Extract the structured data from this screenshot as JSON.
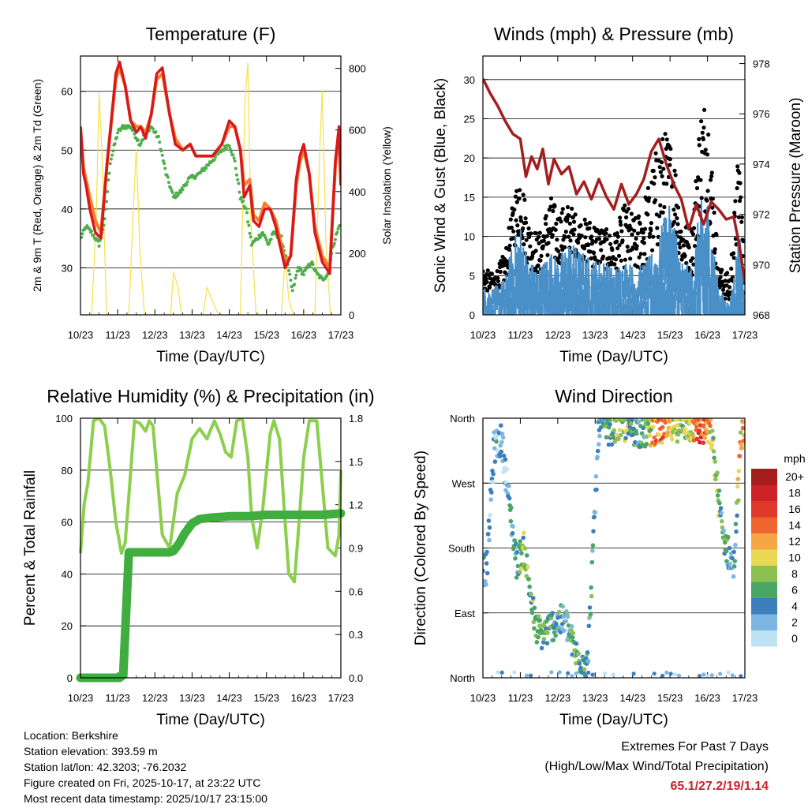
{
  "chart_data": [
    {
      "type": "line",
      "title": "Temperature (F)",
      "xlabel": "Time (Day/UTC)",
      "ylabel": "2m & 9m T (Red, Orange) & 2m Td (Green)",
      "ylabel_right": "Solar Insolation (Yellow)",
      "x_ticks": [
        "10/23",
        "11/23",
        "12/23",
        "13/23",
        "14/23",
        "15/23",
        "16/23",
        "17/23"
      ],
      "y_ticks": [
        "30",
        "40",
        "50",
        "60"
      ],
      "y_right_ticks": [
        "0",
        "200",
        "400",
        "600",
        "800"
      ],
      "ylim": [
        22,
        66
      ],
      "ylim_right": [
        0,
        840
      ],
      "grid": true,
      "series": [
        {
          "name": "2m T",
          "color": "#d7191c",
          "x": [
            0,
            0.08,
            0.15,
            0.25,
            0.4,
            0.55,
            0.72,
            0.95,
            1.05,
            1.2,
            1.35,
            1.5,
            1.62,
            1.75,
            1.9,
            2.05,
            2.2,
            2.4,
            2.55,
            2.75,
            2.95,
            3.1,
            3.3,
            3.55,
            3.8,
            4.0,
            4.15,
            4.3,
            4.4,
            4.55,
            4.65,
            4.8,
            4.95,
            5.1,
            5.25,
            5.5,
            5.65,
            5.8,
            5.9,
            6.0,
            6.15,
            6.3,
            6.5,
            6.7,
            6.85,
            6.95,
            7.0
          ],
          "y": [
            54,
            46,
            44,
            40,
            36,
            35,
            48,
            63,
            65,
            61,
            55,
            53,
            54,
            52,
            56,
            63,
            64,
            56,
            51,
            50,
            51,
            49,
            49,
            49,
            51,
            55,
            54,
            50,
            42,
            44,
            38,
            37,
            40,
            40,
            37,
            30,
            32,
            45,
            49,
            51,
            46,
            36,
            31,
            29,
            48,
            54,
            44
          ]
        },
        {
          "name": "9m T",
          "color": "#f57f2b",
          "x": [
            0,
            0.08,
            0.15,
            0.25,
            0.4,
            0.55,
            0.72,
            0.95,
            1.05,
            1.2,
            1.35,
            1.5,
            1.62,
            1.75,
            1.9,
            2.05,
            2.2,
            2.4,
            2.55,
            2.75,
            2.95,
            3.1,
            3.3,
            3.55,
            3.8,
            4.0,
            4.15,
            4.3,
            4.4,
            4.55,
            4.65,
            4.8,
            4.95,
            5.1,
            5.25,
            5.5,
            5.65,
            5.8,
            5.9,
            6.0,
            6.15,
            6.3,
            6.5,
            6.7,
            6.85,
            6.95,
            7.0
          ],
          "y": [
            54,
            47,
            45,
            42,
            38,
            36,
            48,
            62,
            64,
            61,
            55,
            54,
            54,
            53,
            56,
            62,
            63,
            56,
            52,
            50,
            51,
            49,
            49,
            49,
            51,
            54,
            54,
            50,
            44,
            45,
            39,
            38,
            41,
            40,
            38,
            31,
            32,
            44,
            48,
            50,
            46,
            37,
            32,
            30,
            47,
            53,
            44
          ]
        },
        {
          "name": "2m Td",
          "color": "#4daf4a",
          "x": [
            0,
            0.15,
            0.3,
            0.5,
            0.65,
            0.8,
            1.0,
            1.15,
            1.35,
            1.6,
            1.75,
            1.9,
            2.1,
            2.3,
            2.5,
            2.7,
            2.9,
            3.2,
            3.5,
            3.8,
            4.0,
            4.15,
            4.3,
            4.45,
            4.6,
            4.75,
            4.9,
            5.05,
            5.2,
            5.4,
            5.55,
            5.7,
            5.85,
            6.0,
            6.2,
            6.35,
            6.5,
            6.65,
            6.8,
            6.95,
            7.0
          ],
          "y": [
            35,
            37,
            36,
            34,
            38,
            48,
            53,
            54,
            54,
            51,
            53,
            54,
            52,
            46,
            42,
            43,
            45,
            46,
            48,
            50,
            51,
            48,
            42,
            40,
            34,
            35,
            36,
            34,
            36,
            35,
            31,
            26,
            30,
            29,
            31,
            29,
            28,
            29,
            34,
            37,
            38
          ]
        },
        {
          "name": "Solar Insolation",
          "color": "#f5e14a",
          "axis": "right",
          "x": [
            0,
            0.3,
            0.42,
            0.5,
            0.58,
            0.7,
            1.1,
            1.3,
            1.42,
            1.5,
            1.6,
            1.72,
            2.1,
            2.3,
            2.42,
            2.5,
            2.62,
            2.72,
            3.1,
            3.3,
            3.4,
            3.5,
            3.6,
            3.72,
            4.1,
            4.3,
            4.42,
            4.5,
            4.58,
            4.72,
            5.1,
            5.3,
            5.4,
            5.5,
            5.6,
            5.72,
            6.1,
            6.3,
            6.42,
            6.5,
            6.6,
            6.72,
            7.0
          ],
          "y": [
            0,
            0,
            300,
            720,
            520,
            0,
            0,
            0,
            340,
            540,
            200,
            0,
            0,
            0,
            0,
            140,
            90,
            0,
            0,
            0,
            90,
            60,
            30,
            0,
            0,
            0,
            690,
            820,
            300,
            0,
            0,
            0,
            0,
            190,
            50,
            0,
            0,
            0,
            500,
            730,
            230,
            0,
            0
          ]
        }
      ]
    },
    {
      "type": "scatter",
      "title": "Winds (mph) & Pressure (mb)",
      "xlabel": "Time (Day/UTC)",
      "ylabel": "Sonic Wind & Gust (Blue, Black)",
      "ylabel_right": "Station Pressure (Maroon)",
      "x_ticks": [
        "10/23",
        "11/23",
        "12/23",
        "13/23",
        "14/23",
        "15/23",
        "16/23",
        "17/23"
      ],
      "y_ticks": [
        "0",
        "5",
        "10",
        "15",
        "20",
        "25",
        "30"
      ],
      "y_right_ticks": [
        "968",
        "970",
        "972",
        "974",
        "976",
        "978"
      ],
      "ylim": [
        0,
        33
      ],
      "ylim_right": [
        968,
        978.3
      ],
      "grid": true,
      "series": [
        {
          "name": "Sonic Wind",
          "color": "#4a90c8",
          "x": [
            0,
            0.3,
            0.6,
            0.8,
            1.0,
            1.2,
            1.5,
            1.8,
            2.0,
            2.3,
            2.6,
            2.9,
            3.2,
            3.5,
            3.8,
            4.1,
            4.4,
            4.7,
            4.9,
            5.1,
            5.3,
            5.6,
            5.8,
            6.0,
            6.3,
            6.6,
            6.85,
            7.0
          ],
          "y": [
            3,
            3,
            4,
            8,
            10,
            6,
            5,
            7,
            6,
            8,
            7,
            6,
            6,
            5,
            6,
            5,
            6,
            8,
            12,
            11,
            6,
            5,
            12,
            13,
            3,
            1,
            10,
            2
          ]
        },
        {
          "name": "Gust",
          "color": "#000000",
          "x": [
            0,
            0.3,
            0.6,
            0.8,
            1.0,
            1.2,
            1.5,
            1.8,
            2.0,
            2.3,
            2.6,
            2.9,
            3.2,
            3.5,
            3.8,
            4.1,
            4.4,
            4.7,
            4.9,
            5.1,
            5.3,
            5.6,
            5.8,
            6.0,
            6.3,
            6.6,
            6.85,
            7.0
          ],
          "y": [
            6,
            5,
            8,
            14,
            19,
            12,
            10,
            15,
            13,
            14,
            12,
            12,
            11,
            10,
            14,
            12,
            16,
            22,
            23,
            21,
            12,
            11,
            26,
            28,
            6,
            5,
            22,
            5
          ]
        },
        {
          "name": "Station Pressure",
          "color": "#a31f1f",
          "axis": "right",
          "x": [
            0,
            0.2,
            0.4,
            0.6,
            0.8,
            1.0,
            1.15,
            1.3,
            1.45,
            1.6,
            1.75,
            1.9,
            2.1,
            2.3,
            2.5,
            2.7,
            2.9,
            3.1,
            3.3,
            3.5,
            3.7,
            3.9,
            4.1,
            4.3,
            4.5,
            4.7,
            4.9,
            5.1,
            5.3,
            5.5,
            5.7,
            5.9,
            6.1,
            6.3,
            6.5,
            6.7,
            6.85,
            7.0
          ],
          "y": [
            977.4,
            976.8,
            976.3,
            975.7,
            975.2,
            975.0,
            973.5,
            974.3,
            973.8,
            974.6,
            973.2,
            974.2,
            973.6,
            973.9,
            972.8,
            973.3,
            972.6,
            973.4,
            972.7,
            972.2,
            973.2,
            972.4,
            972.8,
            973.4,
            974.5,
            975.0,
            974.0,
            973.2,
            972.6,
            971.4,
            972.4,
            971.6,
            972.5,
            972.2,
            971.8,
            971.9,
            970.8,
            969.3
          ]
        }
      ]
    },
    {
      "type": "line",
      "title": "Relative Humidity (%) & Precipitation (in)",
      "xlabel": "Time (Day/UTC)",
      "ylabel": "Percent & Total Rainfall",
      "x_ticks": [
        "10/23",
        "11/23",
        "12/23",
        "13/23",
        "14/23",
        "15/23",
        "16/23",
        "17/23"
      ],
      "y_ticks": [
        "0",
        "20",
        "40",
        "60",
        "80",
        "100"
      ],
      "y_right_ticks": [
        "0.0",
        "0.3",
        "0.6",
        "0.9",
        "1.2",
        "1.5",
        "1.8"
      ],
      "ylim": [
        0,
        100
      ],
      "ylim_right": [
        0,
        1.8
      ],
      "grid": true,
      "series": [
        {
          "name": "Relative Humidity",
          "color": "#8ccf4d",
          "x": [
            0,
            0.1,
            0.2,
            0.35,
            0.5,
            0.65,
            0.8,
            0.95,
            1.1,
            1.2,
            1.3,
            1.45,
            1.6,
            1.75,
            1.85,
            1.95,
            2.05,
            2.2,
            2.4,
            2.6,
            2.8,
            3.0,
            3.2,
            3.4,
            3.6,
            3.75,
            3.9,
            4.05,
            4.2,
            4.35,
            4.5,
            4.6,
            4.75,
            4.9,
            5.1,
            5.2,
            5.35,
            5.5,
            5.6,
            5.75,
            5.85,
            6.0,
            6.15,
            6.35,
            6.5,
            6.65,
            6.85,
            6.95,
            7.0
          ],
          "y": [
            48,
            67,
            75,
            99,
            100,
            97,
            80,
            60,
            48,
            52,
            70,
            99,
            98,
            95,
            99,
            97,
            80,
            55,
            50,
            71,
            78,
            92,
            96,
            92,
            99,
            94,
            87,
            85,
            99,
            100,
            85,
            62,
            50,
            65,
            94,
            99,
            92,
            60,
            40,
            37,
            55,
            85,
            99,
            99,
            75,
            50,
            47,
            55,
            80
          ]
        },
        {
          "name": "Total Precipitation",
          "color": "#3fae3f",
          "axis": "right",
          "x": [
            0,
            0.3,
            0.6,
            0.9,
            1.05,
            1.15,
            1.3,
            1.6,
            1.9,
            2.2,
            2.4,
            2.5,
            2.65,
            2.8,
            3.0,
            3.2,
            3.5,
            4.0,
            4.5,
            5.0,
            5.5,
            6.0,
            6.5,
            7.0
          ],
          "y": [
            0.0,
            0.0,
            0.0,
            0.0,
            0.0,
            0.02,
            0.87,
            0.87,
            0.87,
            0.87,
            0.87,
            0.88,
            0.93,
            1.0,
            1.07,
            1.1,
            1.11,
            1.12,
            1.12,
            1.13,
            1.13,
            1.13,
            1.13,
            1.14
          ]
        }
      ]
    },
    {
      "type": "scatter",
      "title": "Wind Direction",
      "xlabel": "Time (Day/UTC)",
      "ylabel": "Direction (Colored By Speed)",
      "x_ticks": [
        "10/23",
        "11/23",
        "12/23",
        "13/23",
        "14/23",
        "15/23",
        "16/23",
        "17/23"
      ],
      "y_ticks": [
        "North",
        "East",
        "South",
        "West",
        "North"
      ],
      "ylim": [
        0,
        360
      ],
      "grid": true,
      "legend_title": "mph",
      "legend_labels": [
        "20+",
        "18",
        "16",
        "14",
        "12",
        "10",
        "8",
        "6",
        "4",
        "2",
        "0"
      ],
      "legend_colors": [
        "#a61b1b",
        "#cc2228",
        "#e0382b",
        "#f0642d",
        "#f7a646",
        "#e8d854",
        "#8cc152",
        "#4aa664",
        "#3d7ebd",
        "#7cb6e3",
        "#bde3f5"
      ],
      "series": [
        {
          "name": "Wind direction",
          "x": [
            0.1,
            0.3,
            0.5,
            0.9,
            1.1,
            1.4,
            1.6,
            1.9,
            2.2,
            2.5,
            2.8,
            3.1,
            3.4,
            3.7,
            4.0,
            4.3,
            4.6,
            4.9,
            5.2,
            5.5,
            5.8,
            6.1,
            6.4,
            6.7,
            6.9
          ],
          "speed": [
            3,
            2,
            3,
            4,
            8,
            6,
            7,
            5,
            4,
            6,
            5,
            4,
            6,
            9,
            5,
            4,
            12,
            14,
            6,
            8,
            16,
            10,
            5,
            3,
            12
          ],
          "direction": [
            150,
            320,
            330,
            160,
            180,
            70,
            60,
            75,
            80,
            30,
            20,
            350,
            345,
            350,
            345,
            340,
            345,
            345,
            350,
            350,
            345,
            340,
            200,
            150,
            335
          ]
        }
      ]
    }
  ],
  "info": {
    "location": "Location: Berkshire",
    "elevation": "Station elevation: 393.59 m",
    "latlon": "Station lat/lon: 42.3203; -76.2032",
    "created": "Figure created on Fri, 2025-10-17, at 23:22 UTC",
    "recent": "Most recent data timestamp: 2025/10/17 23:15:00"
  },
  "extremes": {
    "line1": "Extremes For Past 7 Days",
    "line2": "(High/Low/Max Wind/Total Precipitation)",
    "values": "65.1/27.2/19/1.14"
  }
}
